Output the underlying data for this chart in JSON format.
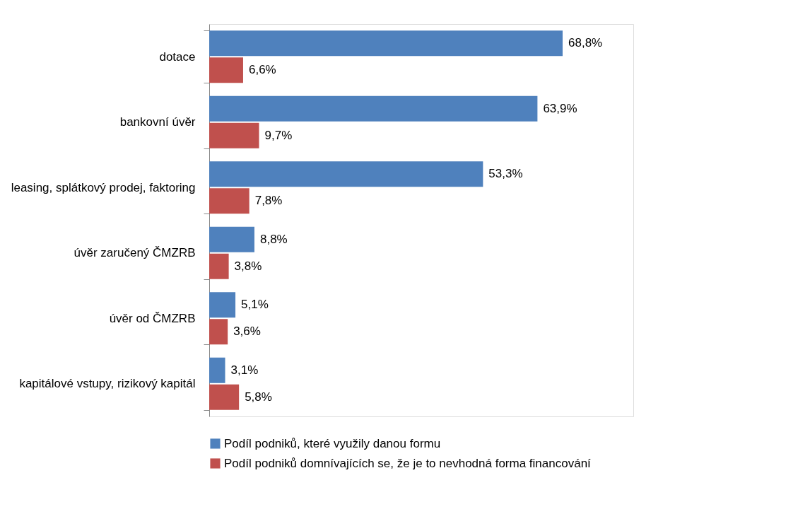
{
  "chart_data": {
    "type": "bar",
    "orientation": "horizontal",
    "categories": [
      "dotace",
      "bankovní úvěr",
      "leasing, splátkový prodej, faktoring",
      "úvěr zaručený ČMZRB",
      "úvěr od ČMZRB",
      "kapitálové vstupy, rizikový kapitál"
    ],
    "series": [
      {
        "name": "Podíl podniků, které využily danou formu",
        "color": "#4f81bd",
        "values": [
          68.8,
          63.9,
          53.3,
          8.8,
          5.1,
          3.1
        ],
        "value_labels": [
          "68,8%",
          "63,9%",
          "53,3%",
          "8,8%",
          "5,1%",
          "3,1%"
        ]
      },
      {
        "name": "Podíl podniků domnívajících se, že je to nevhodná forma financování",
        "color": "#c0504d",
        "values": [
          6.6,
          9.7,
          7.8,
          3.8,
          3.6,
          5.8
        ],
        "value_labels": [
          "6,6%",
          "9,7%",
          "7,8%",
          "3,8%",
          "3,6%",
          "5,8%"
        ]
      }
    ],
    "legend": "bottom",
    "grid": false
  }
}
